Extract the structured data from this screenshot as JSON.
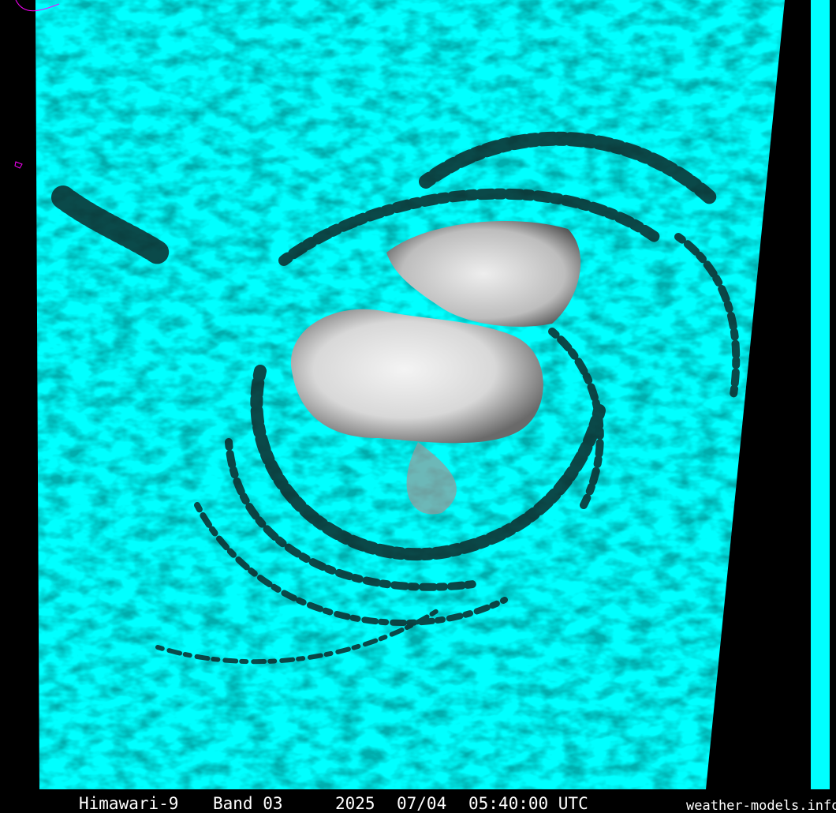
{
  "caption": {
    "satellite": "Himawari-9",
    "band": "Band 03",
    "year": "2025",
    "date": "07/04",
    "time": "05:40:00 UTC"
  },
  "credit": "weather-models.info"
}
